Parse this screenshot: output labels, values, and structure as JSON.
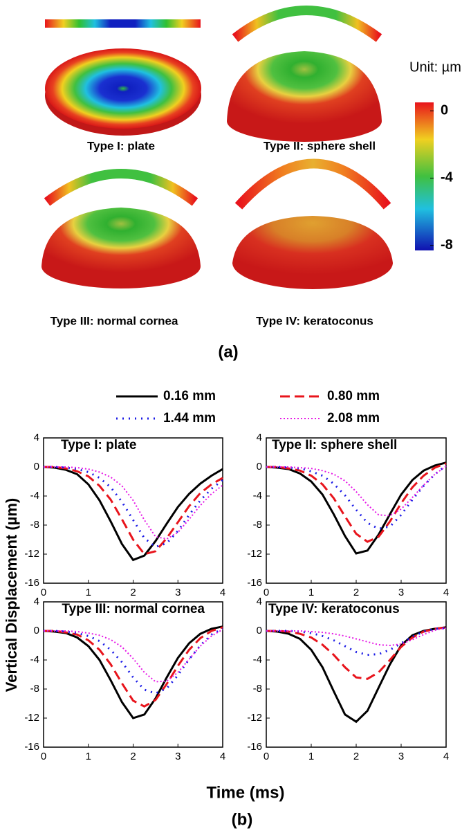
{
  "figure_a": {
    "panels": [
      {
        "label": "Type I: plate"
      },
      {
        "label": "Type II: sphere shell"
      },
      {
        "label": "Type III: normal cornea"
      },
      {
        "label": "Type IV: keratoconus"
      }
    ],
    "unit": "Unit: µm",
    "colorbar": {
      "lim": [
        -8.3,
        0.5
      ],
      "ticks": [
        0,
        -4,
        -8
      ]
    },
    "caption": "(a)"
  },
  "legend": [
    {
      "name": "0.16 mm",
      "color": "#000000",
      "style": "solid"
    },
    {
      "name": "0.80 mm",
      "color": "#e8141c",
      "style": "dashed"
    },
    {
      "name": "1.44 mm",
      "color": "#1a1ae6",
      "style": "dotted"
    },
    {
      "name": "2.08 mm",
      "color": "#e619e6",
      "style": "dense-dotted"
    }
  ],
  "chart_data": [
    {
      "type": "line",
      "title": "Type I: plate",
      "x": [
        0,
        0.25,
        0.5,
        0.75,
        1,
        1.25,
        1.5,
        1.75,
        2,
        2.25,
        2.5,
        2.75,
        3,
        3.25,
        3.5,
        3.75,
        4
      ],
      "series": [
        {
          "values": [
            0,
            -0.1,
            -0.4,
            -1.0,
            -2.4,
            -4.6,
            -7.5,
            -10.6,
            -12.8,
            -12.2,
            -10.2,
            -7.8,
            -5.5,
            -3.7,
            -2.3,
            -1.2,
            -0.3
          ]
        },
        {
          "values": [
            0,
            0,
            -0.2,
            -0.6,
            -1.3,
            -2.6,
            -4.5,
            -7.2,
            -10.0,
            -12.0,
            -11.6,
            -9.8,
            -7.6,
            -5.4,
            -3.6,
            -2.4,
            -1.5
          ]
        },
        {
          "values": [
            0,
            0,
            -0.1,
            -0.3,
            -0.7,
            -1.5,
            -2.8,
            -4.8,
            -7.3,
            -9.8,
            -11.0,
            -10.5,
            -8.8,
            -6.6,
            -4.6,
            -3.0,
            -1.8
          ]
        },
        {
          "values": [
            0,
            0,
            0,
            -0.1,
            -0.3,
            -0.7,
            -1.4,
            -2.6,
            -4.6,
            -7.3,
            -9.6,
            -9.9,
            -9.0,
            -7.2,
            -5.3,
            -3.7,
            -2.5
          ]
        }
      ],
      "xlim": [
        0,
        4
      ],
      "ylim": [
        -16,
        4
      ],
      "xticks": [
        0,
        1,
        2,
        3,
        4
      ],
      "yticks": [
        -16,
        -12,
        -8,
        -4,
        0,
        4
      ]
    },
    {
      "type": "line",
      "title": "Type II: sphere shell",
      "x": [
        0,
        0.25,
        0.5,
        0.75,
        1,
        1.25,
        1.5,
        1.75,
        2,
        2.25,
        2.5,
        2.75,
        3,
        3.25,
        3.5,
        3.75,
        4
      ],
      "series": [
        {
          "values": [
            0,
            -0.1,
            -0.3,
            -0.9,
            -2.0,
            -3.8,
            -6.5,
            -9.5,
            -11.9,
            -11.5,
            -9.3,
            -6.5,
            -3.8,
            -1.8,
            -0.5,
            0.2,
            0.6
          ]
        },
        {
          "values": [
            0,
            0,
            -0.2,
            -0.5,
            -1.2,
            -2.4,
            -4.3,
            -6.8,
            -9.2,
            -10.3,
            -9.6,
            -7.5,
            -5.0,
            -2.8,
            -1.2,
            -0.1,
            0.5
          ]
        },
        {
          "values": [
            0,
            0,
            -0.1,
            -0.2,
            -0.6,
            -1.2,
            -2.3,
            -3.9,
            -5.9,
            -7.7,
            -8.5,
            -8.2,
            -6.6,
            -4.5,
            -2.6,
            -1.0,
            0.2
          ]
        },
        {
          "values": [
            0,
            0,
            0,
            -0.1,
            -0.2,
            -0.5,
            -1.0,
            -1.9,
            -3.4,
            -5.2,
            -6.6,
            -6.7,
            -5.8,
            -4.2,
            -2.5,
            -1.0,
            0.1
          ]
        }
      ],
      "xlim": [
        0,
        4
      ],
      "ylim": [
        -16,
        4
      ],
      "xticks": [
        0,
        1,
        2,
        3,
        4
      ],
      "yticks": [
        -16,
        -12,
        -8,
        -4,
        0,
        4
      ]
    },
    {
      "type": "line",
      "title": "Type III: normal cornea",
      "x": [
        0,
        0.25,
        0.5,
        0.75,
        1,
        1.25,
        1.5,
        1.75,
        2,
        2.25,
        2.5,
        2.75,
        3,
        3.25,
        3.5,
        3.75,
        4
      ],
      "series": [
        {
          "values": [
            0,
            -0.1,
            -0.3,
            -0.9,
            -2.1,
            -4.0,
            -6.8,
            -9.8,
            -12.0,
            -11.5,
            -9.3,
            -6.4,
            -3.7,
            -1.7,
            -0.4,
            0.3,
            0.6
          ]
        },
        {
          "values": [
            0,
            0,
            -0.2,
            -0.5,
            -1.3,
            -2.6,
            -4.6,
            -7.2,
            -9.6,
            -10.4,
            -9.5,
            -7.3,
            -4.8,
            -2.6,
            -1.0,
            0.0,
            0.5
          ]
        },
        {
          "values": [
            0,
            0,
            -0.1,
            -0.3,
            -0.7,
            -1.4,
            -2.6,
            -4.3,
            -6.4,
            -8.1,
            -8.6,
            -7.9,
            -6.1,
            -3.9,
            -2.0,
            -0.5,
            0.3
          ]
        },
        {
          "values": [
            0,
            0,
            0,
            -0.1,
            -0.3,
            -0.6,
            -1.2,
            -2.2,
            -3.8,
            -5.7,
            -7.0,
            -6.9,
            -5.7,
            -3.9,
            -2.1,
            -0.7,
            0.2
          ]
        }
      ],
      "xlim": [
        0,
        4
      ],
      "ylim": [
        -16,
        4
      ],
      "xticks": [
        0,
        1,
        2,
        3,
        4
      ],
      "yticks": [
        -16,
        -12,
        -8,
        -4,
        0,
        4
      ]
    },
    {
      "type": "line",
      "title": "Type IV: keratoconus",
      "x": [
        0,
        0.25,
        0.5,
        0.75,
        1,
        1.25,
        1.5,
        1.75,
        2,
        2.25,
        2.5,
        2.75,
        3,
        3.25,
        3.5,
        3.75,
        4
      ],
      "series": [
        {
          "values": [
            0,
            -0.1,
            -0.4,
            -1.1,
            -2.6,
            -5.0,
            -8.3,
            -11.5,
            -12.5,
            -11.0,
            -7.8,
            -4.6,
            -2.0,
            -0.6,
            0.0,
            0.3,
            0.5
          ]
        },
        {
          "values": [
            0,
            0,
            -0.1,
            -0.4,
            -0.9,
            -1.9,
            -3.3,
            -5.0,
            -6.4,
            -6.6,
            -5.7,
            -4.0,
            -2.2,
            -0.9,
            -0.1,
            0.3,
            0.5
          ]
        },
        {
          "values": [
            0,
            0,
            0,
            -0.1,
            -0.3,
            -0.7,
            -1.3,
            -2.1,
            -2.9,
            -3.3,
            -3.2,
            -2.6,
            -1.7,
            -0.8,
            -0.1,
            0.3,
            0.4
          ]
        },
        {
          "values": [
            0,
            0,
            0,
            0,
            -0.1,
            -0.2,
            -0.4,
            -0.7,
            -1.1,
            -1.5,
            -1.9,
            -2.0,
            -1.8,
            -1.2,
            -0.5,
            0.1,
            0.4
          ]
        }
      ],
      "xlim": [
        0,
        4
      ],
      "ylim": [
        -16,
        4
      ],
      "xticks": [
        0,
        1,
        2,
        3,
        4
      ],
      "yticks": [
        -16,
        -12,
        -8,
        -4,
        0,
        4
      ]
    }
  ],
  "figure_b": {
    "ylabel": "Vertical Displacement (µm)",
    "xlabel": "Time (ms)",
    "caption": "(b)"
  }
}
